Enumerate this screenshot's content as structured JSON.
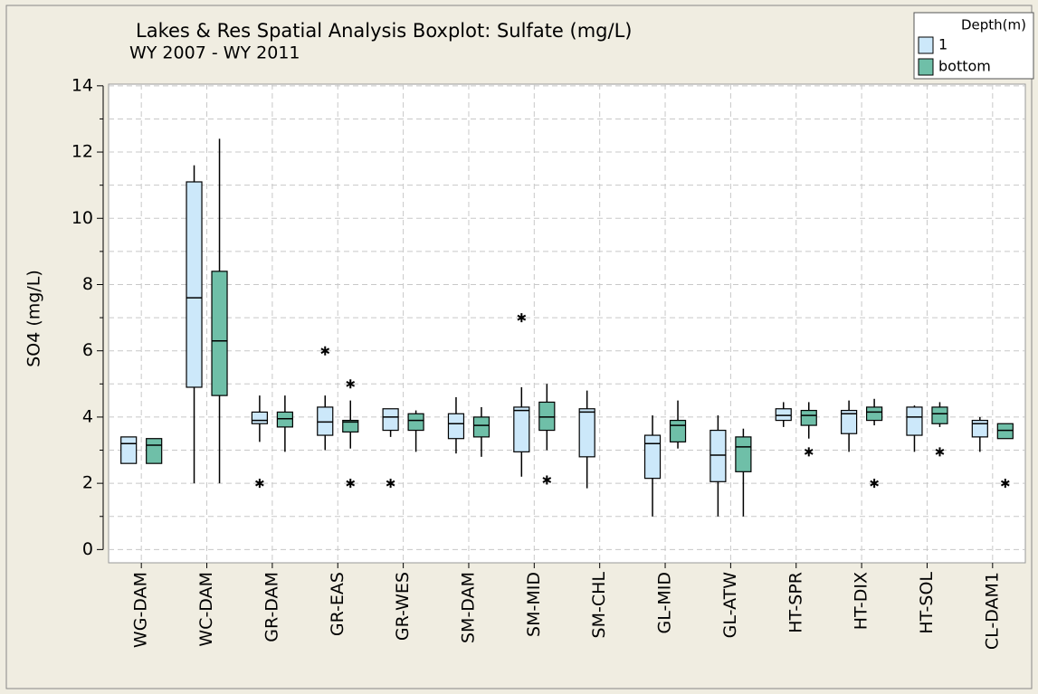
{
  "chart_data": {
    "type": "boxplot",
    "title": "Lakes & Res Spatial Analysis Boxplot: Sulfate (mg/L)",
    "subtitle": "WY 2007 - WY 2011",
    "y_label": "SO4 (mg/L)",
    "legend_title": "Depth(m)",
    "legend_position": "top-right",
    "grid": true,
    "ylim": [
      -0.4,
      14.05
    ],
    "yticks": [
      0,
      2,
      4,
      6,
      8,
      10,
      12,
      14
    ],
    "minor_yticks": [
      1,
      3,
      5,
      7,
      9,
      11,
      13
    ],
    "categories": [
      "WG-DAM",
      "WC-DAM",
      "GR-DAM",
      "GR-EAS",
      "GR-WES",
      "SM-DAM",
      "SM-MID",
      "SM-CHL",
      "GL-MID",
      "GL-ATW",
      "HT-SPR",
      "HT-DIX",
      "HT-SOL",
      "CL-DAM1"
    ],
    "series": [
      {
        "name": "1",
        "color": "#cce8fa",
        "whisker_low": [
          2.6,
          2.0,
          3.25,
          3.0,
          3.4,
          2.9,
          2.2,
          1.85,
          1.0,
          1.0,
          3.7,
          2.95,
          2.95,
          2.95
        ],
        "q1": [
          2.6,
          4.9,
          3.8,
          3.45,
          3.6,
          3.35,
          2.95,
          2.8,
          2.15,
          2.05,
          3.9,
          3.5,
          3.45,
          3.4
        ],
        "median": [
          3.2,
          7.6,
          3.9,
          3.85,
          4.0,
          3.8,
          4.2,
          4.15,
          3.2,
          2.85,
          4.05,
          4.1,
          4.0,
          3.8
        ],
        "q3": [
          3.4,
          11.1,
          4.15,
          4.3,
          4.25,
          4.1,
          4.3,
          4.25,
          3.45,
          3.6,
          4.25,
          4.2,
          4.3,
          3.9
        ],
        "whisker_high": [
          3.4,
          11.6,
          4.65,
          4.65,
          4.25,
          4.6,
          4.9,
          4.8,
          4.05,
          4.05,
          4.45,
          4.5,
          4.35,
          4.0
        ],
        "outliers": [
          [],
          [],
          [
            2.0
          ],
          [
            6.0
          ],
          [
            2.0
          ],
          [],
          [
            7.0
          ],
          [],
          [],
          [],
          [],
          [],
          [],
          []
        ]
      },
      {
        "name": "bottom",
        "color": "#6fbfa8",
        "whisker_low": [
          2.6,
          2.0,
          2.95,
          3.05,
          2.95,
          2.8,
          3.0,
          null,
          3.05,
          1.0,
          3.35,
          3.75,
          3.7,
          3.35
        ],
        "q1": [
          2.6,
          4.65,
          3.7,
          3.55,
          3.6,
          3.4,
          3.6,
          null,
          3.25,
          2.35,
          3.75,
          3.9,
          3.8,
          3.35
        ],
        "median": [
          3.15,
          6.3,
          3.95,
          3.85,
          3.9,
          3.75,
          4.0,
          null,
          3.75,
          3.1,
          4.05,
          4.15,
          4.1,
          3.6
        ],
        "q3": [
          3.35,
          8.4,
          4.15,
          3.9,
          4.1,
          4.0,
          4.45,
          null,
          3.9,
          3.4,
          4.2,
          4.3,
          4.3,
          3.8
        ],
        "whisker_high": [
          3.35,
          12.4,
          4.65,
          4.5,
          4.2,
          4.3,
          5.0,
          null,
          4.5,
          3.65,
          4.45,
          4.55,
          4.45,
          3.8
        ],
        "outliers": [
          [],
          [],
          [],
          [
            5.0,
            2.0
          ],
          [],
          [],
          [
            2.1
          ],
          [],
          [],
          [],
          [
            2.95
          ],
          [
            2.0
          ],
          [
            2.95
          ],
          [
            2.0
          ]
        ]
      }
    ]
  }
}
